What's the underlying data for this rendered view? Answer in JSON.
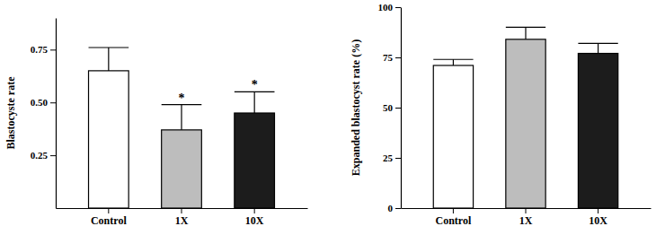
{
  "chart_data": [
    {
      "type": "bar",
      "y_label": "Blastocyste rate",
      "categories": [
        "Control",
        "1X",
        "10X"
      ],
      "values": [
        0.65,
        0.37,
        0.45
      ],
      "errors": [
        0.11,
        0.12,
        0.1
      ],
      "colors": [
        "#ffffff",
        "#bdbdbd",
        "#1c1c1c"
      ],
      "ylim": [
        0,
        0.9
      ],
      "yticks": [
        0.25,
        {
          "value": 0.5,
          "label": "0.50"
        },
        0.75
      ],
      "annotations": [
        {
          "text": "*",
          "category": "1X"
        },
        {
          "text": "*",
          "category": "10X"
        }
      ]
    },
    {
      "type": "bar",
      "y_label": "Expanded blastocyst rate (%)",
      "categories": [
        "Control",
        "1X",
        "10X"
      ],
      "values": [
        71,
        84,
        77
      ],
      "errors": [
        3,
        6,
        5
      ],
      "colors": [
        "#ffffff",
        "#bdbdbd",
        "#1c1c1c"
      ],
      "ylim": [
        0,
        100
      ],
      "yticks": [
        0,
        25,
        50,
        75,
        100
      ]
    }
  ]
}
